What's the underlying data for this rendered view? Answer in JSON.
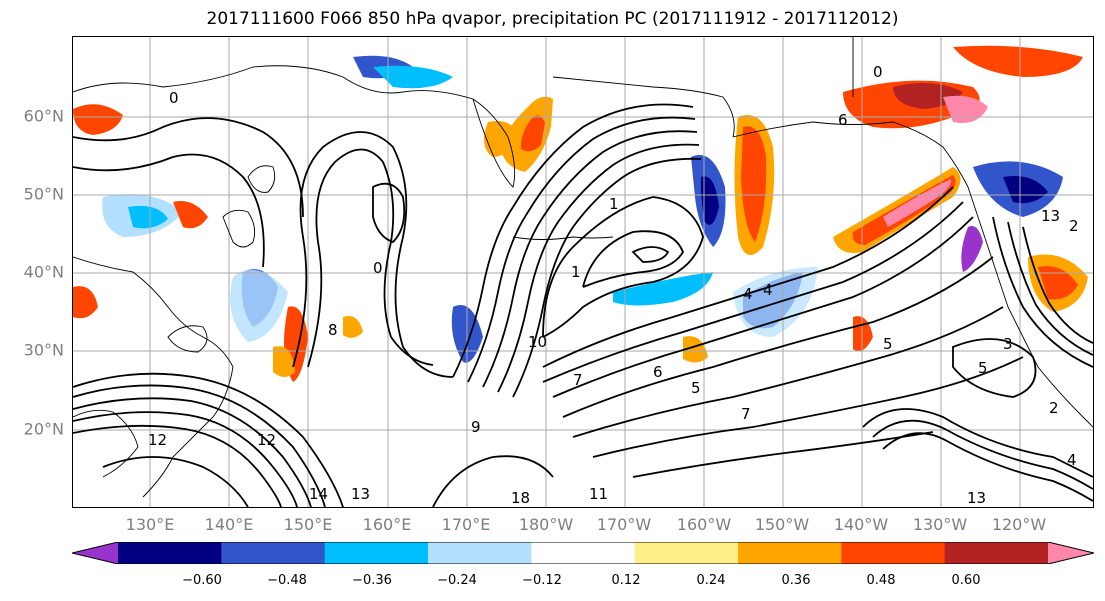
{
  "title": "2017111600 F066 850 hPa qvapor, precipitation PC (2017111912 - 2017112012)",
  "lat_labels": [
    "60°N",
    "50°N",
    "40°N",
    "30°N",
    "20°N"
  ],
  "lon_labels": [
    "130°E",
    "140°E",
    "150°E",
    "160°E",
    "170°E",
    "180°W",
    "170°W",
    "160°W",
    "150°W",
    "140°W",
    "130°W",
    "120°W"
  ],
  "colorbar": {
    "colors": [
      "#9933cc",
      "#000080",
      "#3355cc",
      "#00bfff",
      "#b3e0ff",
      "#ffffff",
      "#fff08a",
      "#ffa500",
      "#ff4500",
      "#b22222",
      "#ff88aa"
    ],
    "tick_labels": [
      "−0.60",
      "−0.48",
      "−0.36",
      "−0.24",
      "−0.12",
      "0.12",
      "0.24",
      "0.36",
      "0.48",
      "0.60"
    ]
  },
  "contour_labels": [
    "0",
    "0",
    "0",
    "1",
    "1",
    "6",
    "4",
    "4",
    "8",
    "9",
    "10",
    "12",
    "12",
    "14",
    "13",
    "18",
    "11",
    "5",
    "5",
    "6",
    "7",
    "7",
    "3",
    "2",
    "2",
    "4",
    "5",
    "13",
    "13"
  ]
}
